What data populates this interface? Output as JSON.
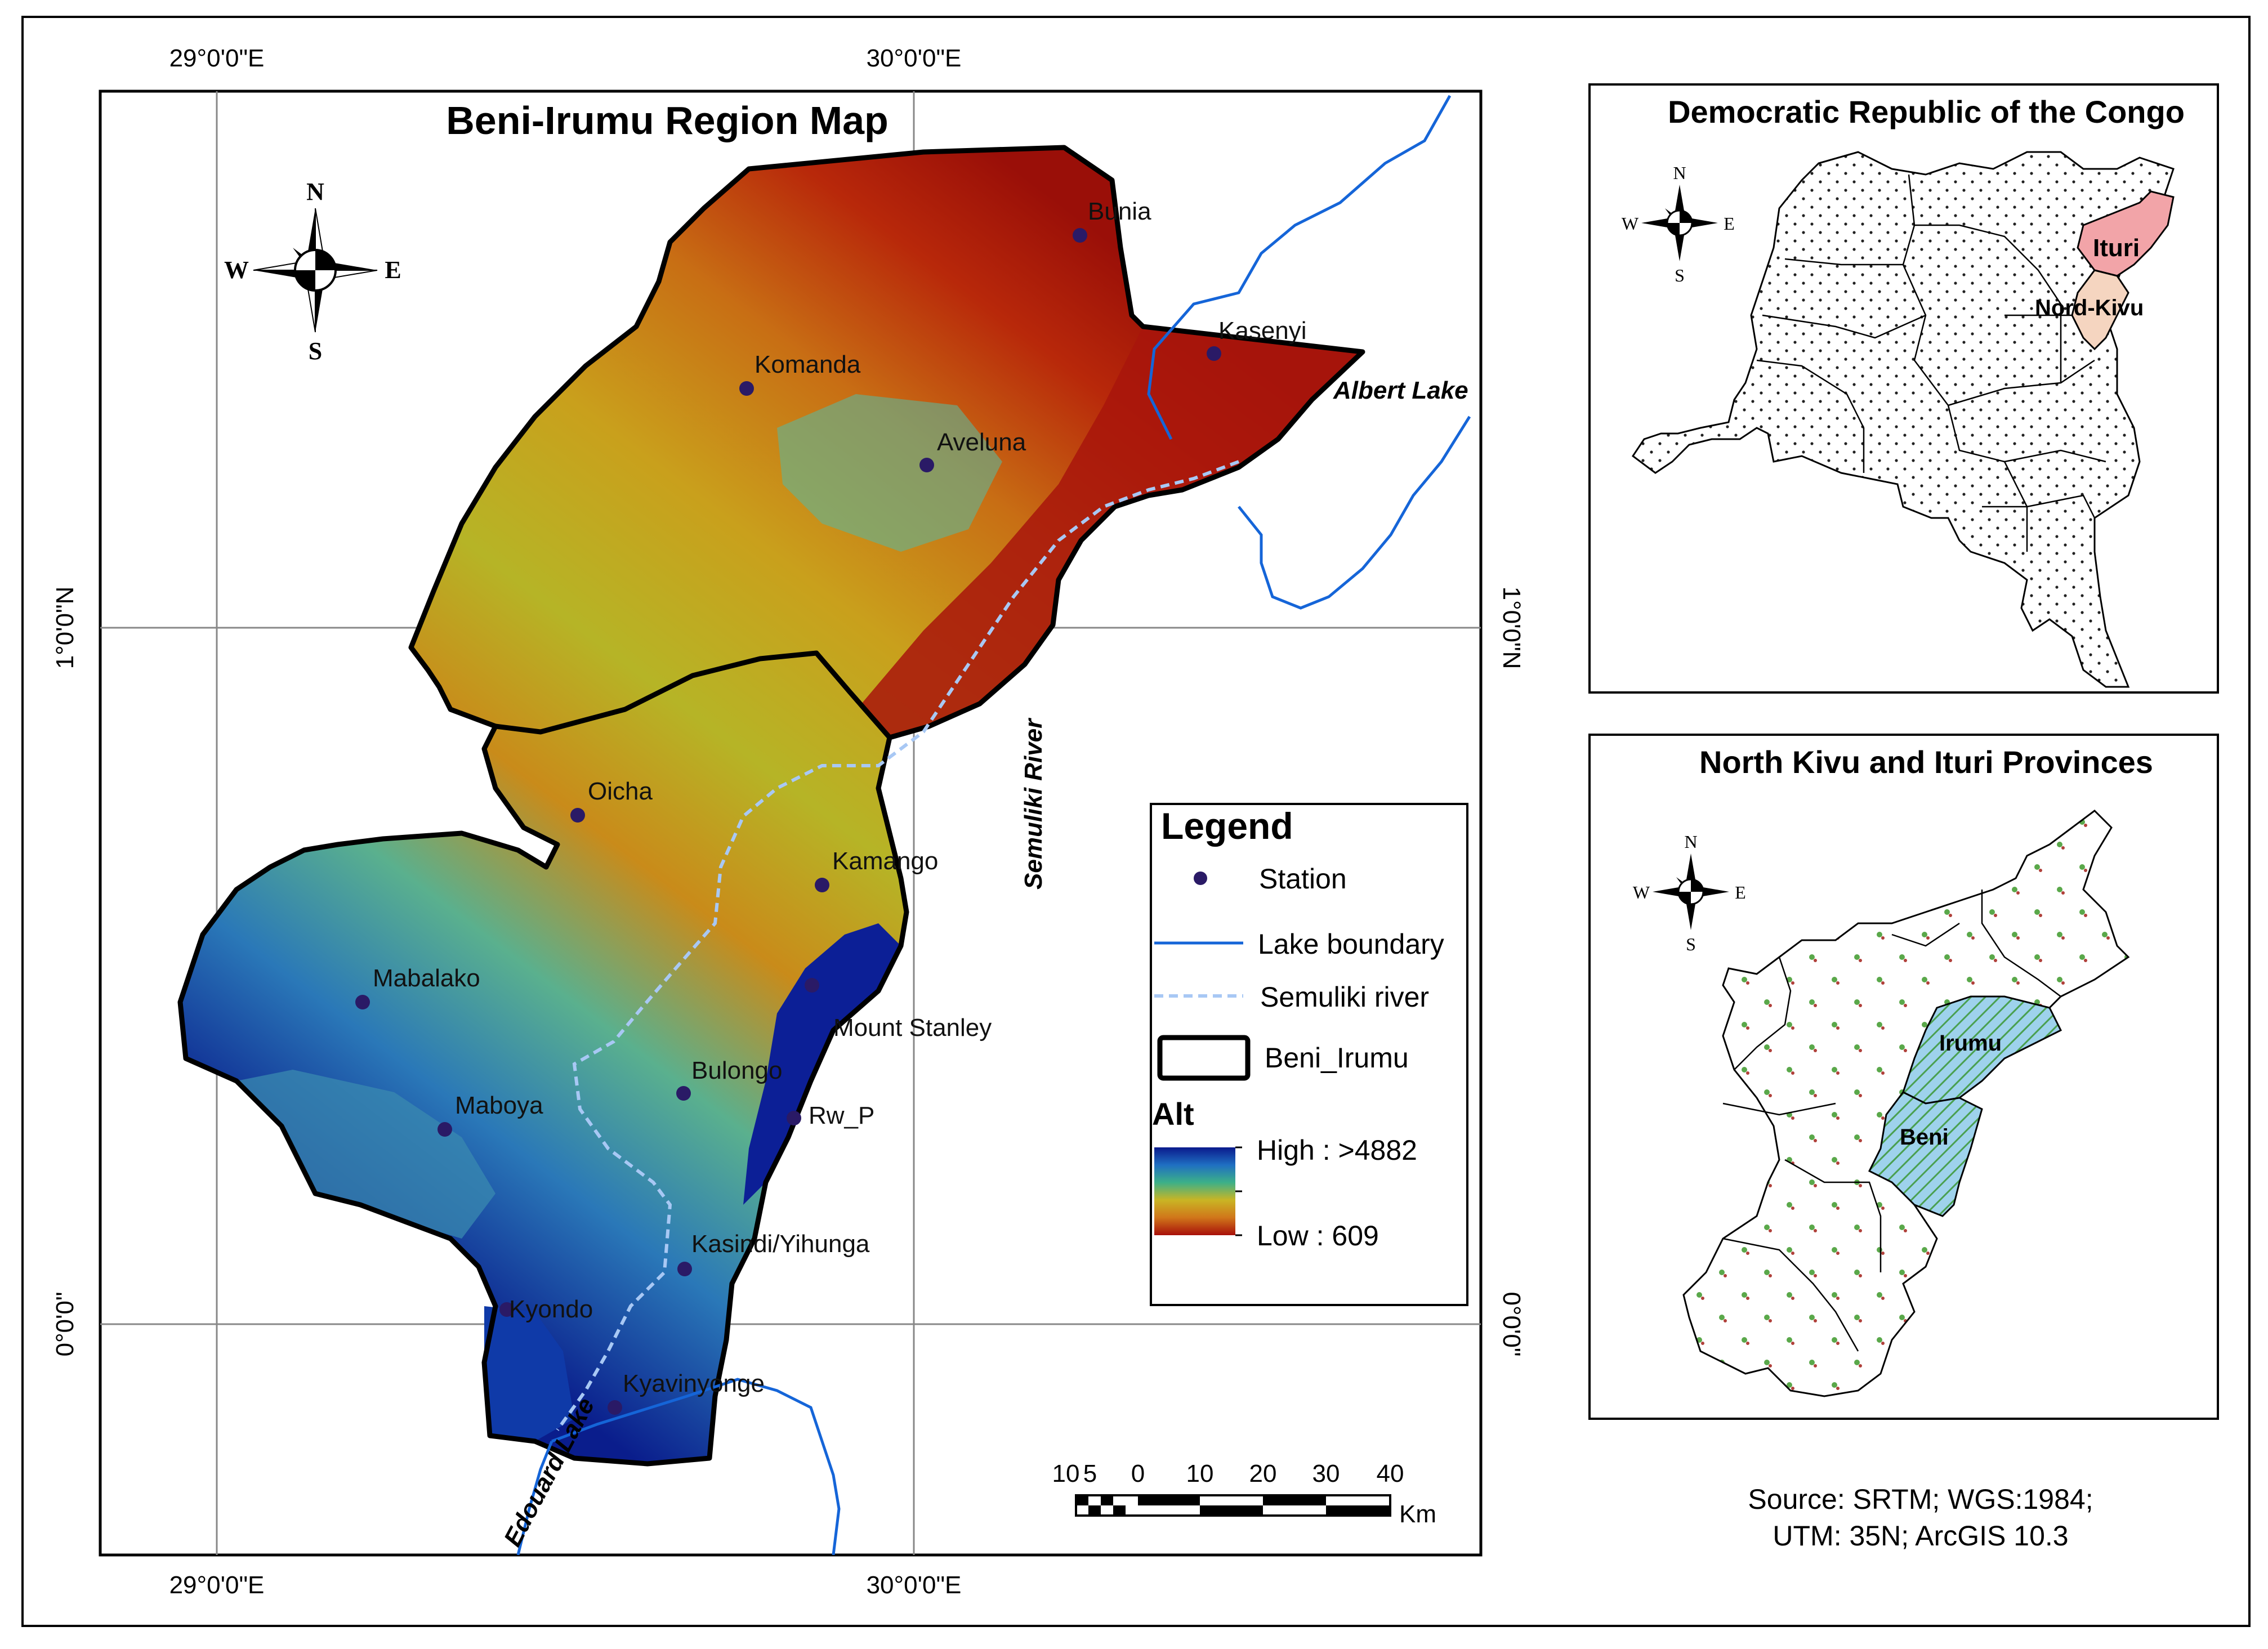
{
  "main_map": {
    "title": "Beni-Irumu Region Map",
    "grid_labels": {
      "lon_left": "29°0'0\"E",
      "lon_right": "30°0'0\"E",
      "lat_upper": "1°0'0\"N",
      "lat_lower": "0°0'0\""
    },
    "stations": [
      {
        "name": "Bunia"
      },
      {
        "name": "Kasenyi"
      },
      {
        "name": "Komanda"
      },
      {
        "name": "Aveluna"
      },
      {
        "name": "Oicha"
      },
      {
        "name": "Kamango"
      },
      {
        "name": "Mabalako"
      },
      {
        "name": "Mount Stanley"
      },
      {
        "name": "Bulongo"
      },
      {
        "name": "Maboya"
      },
      {
        "name": "Rw_P"
      },
      {
        "name": "Kasindi/Yihunga"
      },
      {
        "name": "Kyondo"
      },
      {
        "name": "Kyavinyonge"
      }
    ],
    "water_labels": {
      "albert": "Albert Lake",
      "semuliki": "Semuliki River",
      "edouard": "Edouard Lake"
    },
    "compass": {
      "n": "N",
      "s": "S",
      "e": "E",
      "w": "W"
    }
  },
  "legend": {
    "title": "Legend",
    "station": "Station",
    "lake_boundary": "Lake boundary",
    "semuliki_river": "Semuliki river",
    "beni_irumu": "Beni_Irumu",
    "alt_title": "Alt",
    "high": "High : >4882",
    "low": "Low : 609"
  },
  "scalebar": {
    "ticks": [
      "10",
      "5",
      "0",
      "10",
      "20",
      "30",
      "40"
    ],
    "unit": "Km"
  },
  "inset_drc": {
    "title": "Democratic Republic of the Congo",
    "ituri": "Ituri",
    "nord_kivu": "Nord-Kivu"
  },
  "inset_provinces": {
    "title": "North Kivu and Ituri Provinces",
    "irumu": "Irumu",
    "beni": "Beni"
  },
  "source": {
    "line1": "Source: SRTM; WGS:1984;",
    "line2": "UTM: 35N; ArcGIS 10.3"
  },
  "colors": {
    "dem_high": "#0a1a8c",
    "dem_mid": "#d4b81c",
    "dem_low": "#a80f0a",
    "lake_line": "#1565d8",
    "river_line": "#8ab4f0",
    "station_dot": "#2a1a66",
    "ituri_fill": "#f2a4a8",
    "nord_kivu_fill": "#f5d5c0",
    "irumu_beni_fill": "#8ec8e8"
  }
}
